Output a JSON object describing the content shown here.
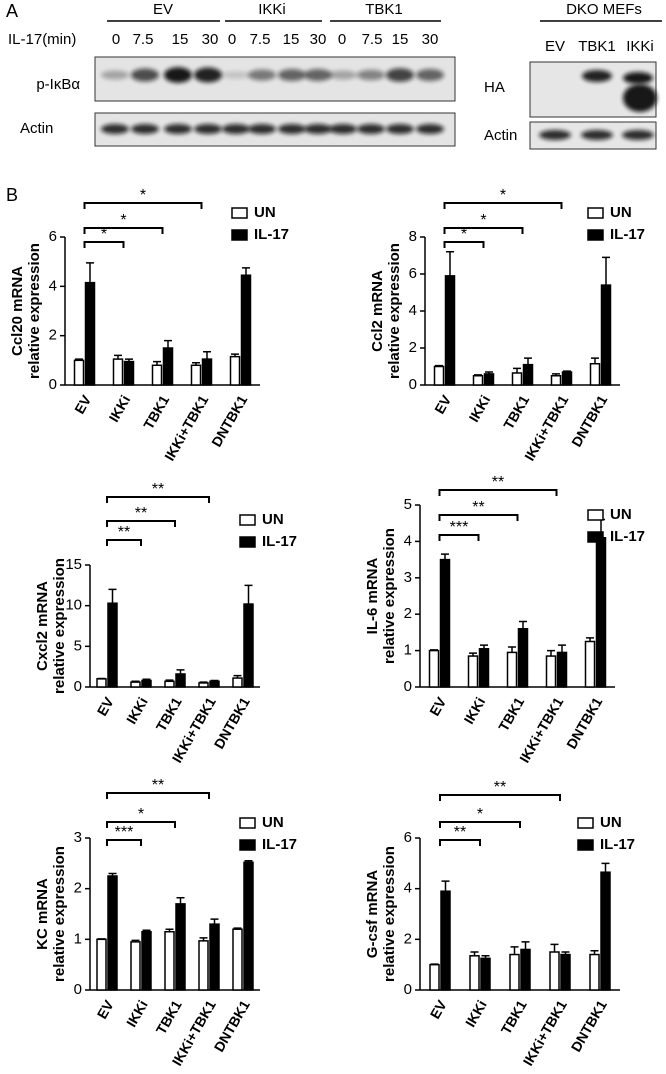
{
  "panel_a": {
    "label": "A",
    "groups": [
      "EV",
      "IKKi",
      "TBK1"
    ],
    "time_label": "IL-17(min)",
    "times": [
      "0",
      "7.5",
      "15",
      "30"
    ],
    "rows": [
      "p-IκBα",
      "Actin"
    ],
    "right": {
      "header": "DKO MEFs",
      "lanes": [
        "EV",
        "TBK1",
        "IKKi"
      ],
      "rows": [
        "HA",
        "Actin"
      ]
    }
  },
  "panel_b_label": "B",
  "chart_data": [
    {
      "type": "bar",
      "ylabel": [
        "Ccl20 mRNA",
        "relative expression"
      ],
      "categories": [
        "EV",
        "IKKi",
        "TBK1",
        "IKKi+TBK1",
        "DNTBK1"
      ],
      "series": [
        {
          "name": "UN",
          "color": "#ffffff",
          "values": [
            1,
            1.05,
            0.8,
            0.8,
            1.15
          ],
          "errors": [
            0.05,
            0.15,
            0.15,
            0.1,
            0.1
          ]
        },
        {
          "name": "IL-17",
          "color": "#000000",
          "values": [
            4.15,
            0.95,
            1.5,
            1.05,
            4.45
          ],
          "errors": [
            0.8,
            0.1,
            0.3,
            0.3,
            0.3
          ]
        }
      ],
      "ylim": [
        0,
        6
      ],
      "yticks": [
        0,
        2,
        4,
        6
      ],
      "significance": [
        "*",
        "*",
        "*"
      ]
    },
    {
      "type": "bar",
      "ylabel": [
        "Ccl2 mRNA",
        "relative expression"
      ],
      "categories": [
        "EV",
        "IKKi",
        "TBK1",
        "IKKi+TBK1",
        "DNTBK1"
      ],
      "series": [
        {
          "name": "UN",
          "color": "#ffffff",
          "values": [
            1,
            0.5,
            0.65,
            0.5,
            1.15
          ],
          "errors": [
            0.05,
            0.05,
            0.25,
            0.1,
            0.3
          ]
        },
        {
          "name": "IL-17",
          "color": "#000000",
          "values": [
            5.9,
            0.6,
            1.1,
            0.7,
            5.4
          ],
          "errors": [
            1.3,
            0.1,
            0.35,
            0.05,
            1.5
          ]
        }
      ],
      "ylim": [
        0,
        8
      ],
      "yticks": [
        0,
        2,
        4,
        6,
        8
      ],
      "significance": [
        "*",
        "*",
        "*"
      ]
    },
    {
      "type": "bar",
      "ylabel": [
        "Cxcl2 mRNA",
        "relative expression"
      ],
      "categories": [
        "EV",
        "IKKi",
        "TBK1",
        "IKKi+TBK1",
        "DNTBK1"
      ],
      "series": [
        {
          "name": "UN",
          "color": "#ffffff",
          "values": [
            1,
            0.6,
            0.7,
            0.5,
            1.1
          ],
          "errors": [
            0.05,
            0.1,
            0.15,
            0.1,
            0.3
          ]
        },
        {
          "name": "IL-17",
          "color": "#000000",
          "values": [
            10.3,
            0.8,
            1.6,
            0.7,
            10.2
          ],
          "errors": [
            1.7,
            0.15,
            0.5,
            0.1,
            2.3
          ]
        }
      ],
      "ylim": [
        0,
        15
      ],
      "yticks": [
        0,
        5,
        10,
        15
      ],
      "significance": [
        "**",
        "**",
        "**"
      ]
    },
    {
      "type": "bar",
      "ylabel": [
        "IL-6 mRNA",
        "relative expression"
      ],
      "categories": [
        "EV",
        "IKKi",
        "TBK1",
        "IKKi+TBK1",
        "DNTBK1"
      ],
      "series": [
        {
          "name": "UN",
          "color": "#ffffff",
          "values": [
            1,
            0.85,
            0.95,
            0.85,
            1.25
          ],
          "errors": [
            0.02,
            0.08,
            0.15,
            0.15,
            0.1
          ]
        },
        {
          "name": "IL-17",
          "color": "#000000",
          "values": [
            3.5,
            1.05,
            1.6,
            0.95,
            4.1
          ],
          "errors": [
            0.15,
            0.1,
            0.2,
            0.2,
            0.5
          ]
        }
      ],
      "ylim": [
        0,
        5
      ],
      "yticks": [
        0,
        1,
        2,
        3,
        4,
        5
      ],
      "significance": [
        "***",
        "**",
        "**"
      ]
    },
    {
      "type": "bar",
      "ylabel": [
        "KC mRNA",
        "relative expression"
      ],
      "categories": [
        "EV",
        "IKKi",
        "TBK1",
        "IKKi+TBK1",
        "DNTBK1"
      ],
      "series": [
        {
          "name": "UN",
          "color": "#ffffff",
          "values": [
            1,
            0.95,
            1.15,
            0.97,
            1.2
          ],
          "errors": [
            0.01,
            0.03,
            0.05,
            0.06,
            0.02
          ]
        },
        {
          "name": "IL-17",
          "color": "#000000",
          "values": [
            2.25,
            1.15,
            1.7,
            1.3,
            2.52
          ],
          "errors": [
            0.05,
            0.03,
            0.12,
            0.1,
            0.03
          ]
        }
      ],
      "ylim": [
        0,
        3
      ],
      "yticks": [
        0,
        1,
        2,
        3
      ],
      "significance": [
        "***",
        "*",
        "**"
      ]
    },
    {
      "type": "bar",
      "ylabel": [
        "G-csf mRNA",
        "relative expression"
      ],
      "categories": [
        "EV",
        "IKKi",
        "TBK1",
        "IKKi+TBK1",
        "DNTBK1"
      ],
      "series": [
        {
          "name": "UN",
          "color": "#ffffff",
          "values": [
            1,
            1.35,
            1.4,
            1.5,
            1.4
          ],
          "errors": [
            0.02,
            0.15,
            0.3,
            0.3,
            0.15
          ]
        },
        {
          "name": "IL-17",
          "color": "#000000",
          "values": [
            3.9,
            1.25,
            1.6,
            1.4,
            4.65
          ],
          "errors": [
            0.4,
            0.1,
            0.3,
            0.1,
            0.35
          ]
        }
      ],
      "ylim": [
        0,
        6
      ],
      "yticks": [
        0,
        2,
        4,
        6
      ],
      "significance": [
        "**",
        "*",
        "**"
      ]
    }
  ]
}
